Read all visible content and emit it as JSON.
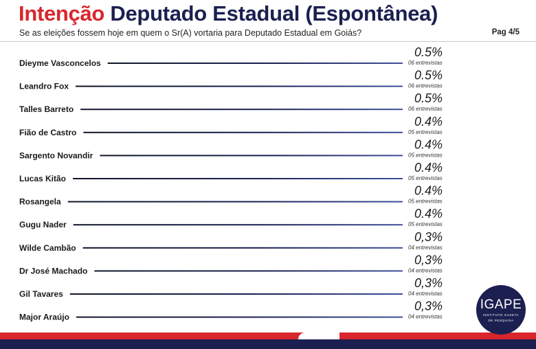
{
  "header": {
    "title_part1": "Intenção",
    "title_part2": "Deputado Estadual (Espontânea)",
    "subtitle": "Se as eleições fossem hoje em quem o Sr(A) vortaria para Deputado Estadual em Goiás?",
    "page": "Pag 4/5"
  },
  "logo": {
    "name": "IGAPE",
    "subtitle_line1": "INSTITUTO GAZETA",
    "subtitle_line2": "DE PESQUISA"
  },
  "colors": {
    "title_red": "#d8262c",
    "navy": "#1b2050",
    "line_blue": "#3d4f9a"
  },
  "chart_data": {
    "type": "bar",
    "orientation": "horizontal",
    "categories": [
      "Dieyme Vasconcelos",
      "Leandro Fox",
      "Talles Barreto",
      "Fião de Castro",
      "Sargento Novandir",
      "Lucas Kitão",
      "Rosangela",
      "Gugu Nader",
      "Wilde Cambão",
      "Dr José Machado",
      "Gil Tavares",
      "Major Araújo"
    ],
    "values": [
      0.5,
      0.5,
      0.5,
      0.4,
      0.4,
      0.4,
      0.4,
      0.4,
      0.3,
      0.3,
      0.3,
      0.3
    ],
    "value_labels": [
      "0.5%",
      "0.5%",
      "0.5%",
      "0.4%",
      "0.4%",
      "0.4%",
      "0.4%",
      "0.4%",
      "0,3%",
      "0,3%",
      "0,3%",
      "0,3%"
    ],
    "counts": [
      "06 entrevistas",
      "06 entrevistas",
      "06 entrevistas",
      "05 entrevistas",
      "05 entrevistas",
      "05 entrevistas",
      "05 entrevistas",
      "05 entrevistas",
      "04 entrevistas",
      "04 entrevistas",
      "04 entrevistas",
      "04 entrevistas"
    ],
    "title": "Intenção Deputado Estadual (Espontânea)",
    "xlabel": "",
    "ylabel": "",
    "unit": "%"
  }
}
